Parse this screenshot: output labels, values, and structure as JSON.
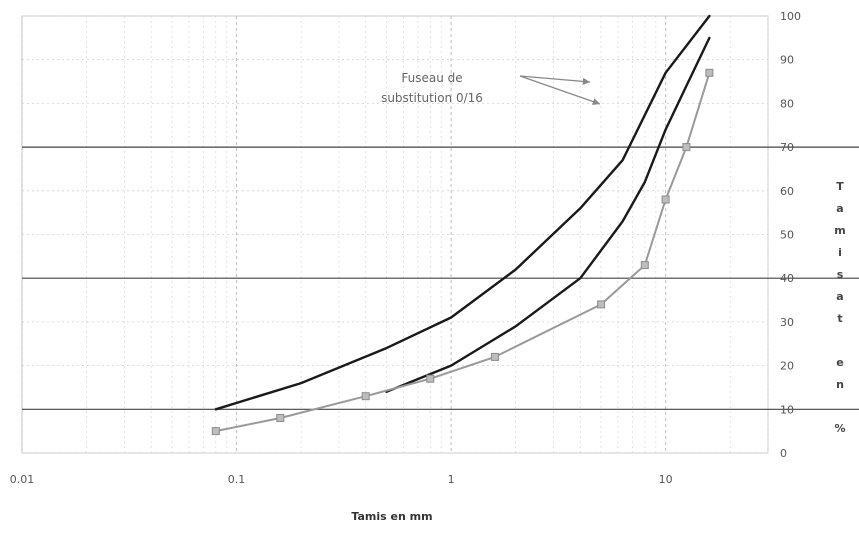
{
  "chart_data": {
    "type": "line",
    "xscale": "log",
    "xlim": [
      0.01,
      30
    ],
    "ylim": [
      0,
      100
    ],
    "x_ticks": [
      "0.01",
      "0.1",
      "1",
      "10"
    ],
    "y_ticks": [
      "0",
      "10",
      "20",
      "30",
      "40",
      "50",
      "60",
      "70",
      "80",
      "90",
      "100"
    ],
    "xlabel": "Tamis en mm",
    "ylabel_chars": [
      "T",
      "a",
      "m",
      "i",
      "s",
      "a",
      "t",
      "",
      "e",
      "n",
      "",
      "%"
    ],
    "grid": true,
    "annotation": {
      "lines": [
        "Fuseau de",
        "substitution 0/16"
      ]
    },
    "series": [
      {
        "color": "#1a1a1a",
        "markers": false,
        "x": [
          0.08,
          0.2,
          0.5,
          1,
          2,
          4,
          6.3,
          10,
          16
        ],
        "y": [
          10,
          16,
          24,
          31,
          42,
          56,
          67,
          87,
          100
        ]
      },
      {
        "color": "#1a1a1a",
        "markers": false,
        "x": [
          0.5,
          1,
          2,
          4,
          6.3,
          8,
          10,
          12.5,
          16
        ],
        "y": [
          14,
          20,
          29,
          40,
          53,
          62,
          74,
          84,
          95
        ]
      },
      {
        "color": "#999999",
        "markers": true,
        "x": [
          0.08,
          0.16,
          0.4,
          0.8,
          1.6,
          5,
          8,
          10,
          12.5,
          16
        ],
        "y": [
          5,
          8,
          13,
          17,
          22,
          34,
          43,
          58,
          70,
          87
        ]
      }
    ]
  }
}
